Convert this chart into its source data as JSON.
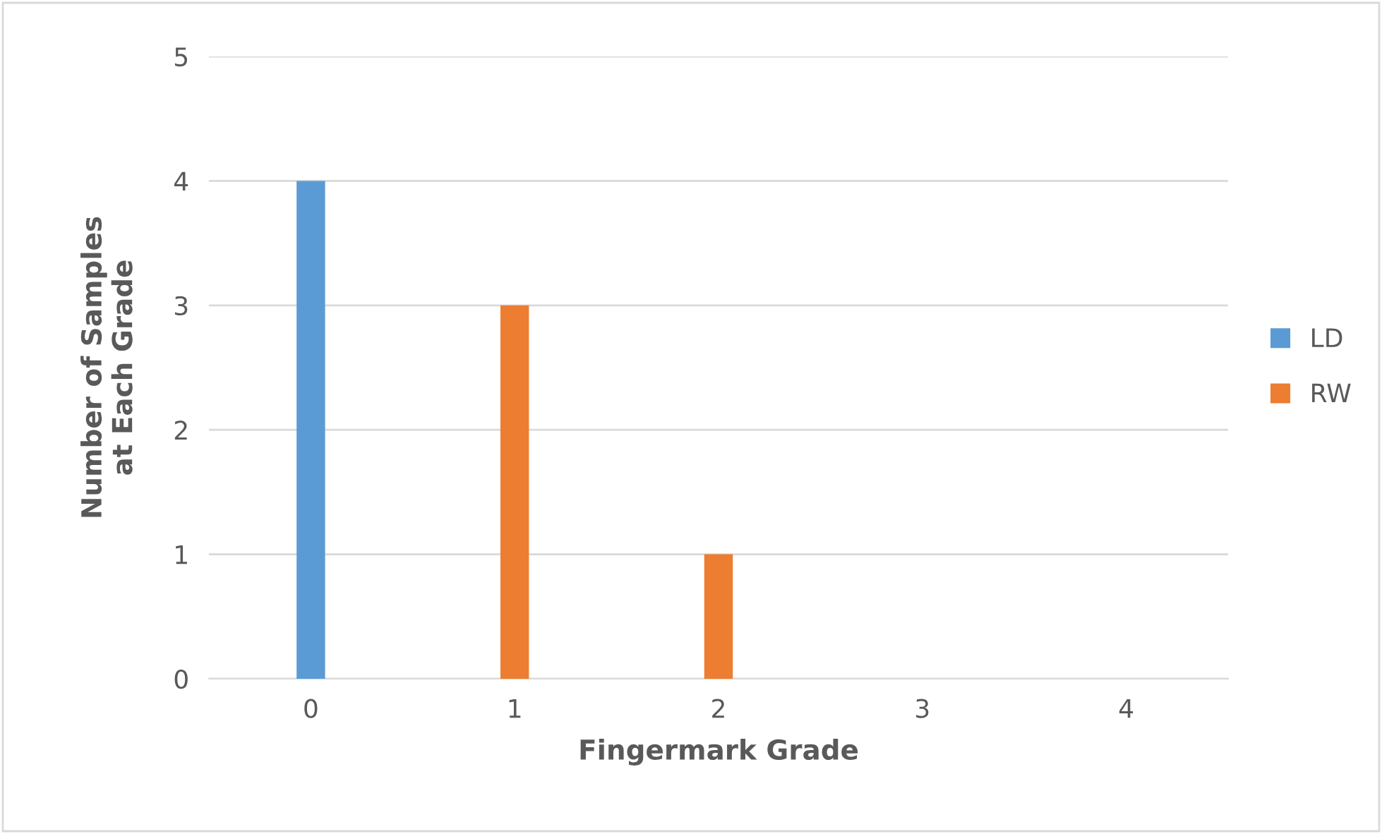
{
  "chart_data": {
    "type": "bar",
    "xlabel": "Fingermark Grade",
    "ylabel": "Number of Samples\nat Each Grade",
    "categories": [
      "0",
      "1",
      "2",
      "3",
      "4"
    ],
    "series": [
      {
        "name": "LD",
        "color": "#5b9bd5",
        "values": [
          4,
          0,
          0,
          0,
          0
        ]
      },
      {
        "name": "RW",
        "color": "#ed7d31",
        "values": [
          0,
          3,
          1,
          0,
          0
        ]
      }
    ],
    "ylim": [
      0,
      5
    ],
    "yticks": [
      0,
      1,
      2,
      3,
      4,
      5
    ],
    "grid": "y",
    "legend": "right"
  }
}
